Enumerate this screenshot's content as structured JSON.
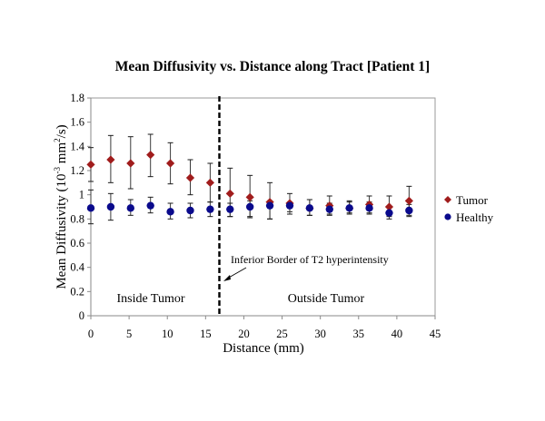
{
  "chart_data": {
    "type": "scatter",
    "title": "Mean Diffusivity vs. Distance along Tract [Patient 1]",
    "xlabel": "Distance (mm)",
    "ylabel_parts": [
      "Mean Diffusivity (10",
      "-3",
      " mm",
      "2",
      "/s)"
    ],
    "ylabel": "Mean Diffusivity (10^-3 mm^2/s)",
    "xlim": [
      0,
      45
    ],
    "ylim": [
      0,
      1.8
    ],
    "xticks": [
      0,
      5,
      10,
      15,
      20,
      25,
      30,
      35,
      40,
      45
    ],
    "yticks": [
      0,
      0.2,
      0.4,
      0.6,
      0.8,
      1,
      1.2,
      1.4,
      1.6,
      1.8
    ],
    "xtick_labels": [
      "0",
      "5",
      "10",
      "15",
      "20",
      "25",
      "30",
      "35",
      "40",
      "45"
    ],
    "ytick_labels": [
      "0",
      "0.2",
      "0.4",
      "0.6",
      "0.8",
      "1",
      "1.2",
      "1.4",
      "1.6",
      "1.8"
    ],
    "grid": false,
    "legend_position": "right",
    "x": [
      0,
      2.6,
      5.2,
      7.8,
      10.4,
      13.0,
      15.6,
      18.2,
      20.8,
      23.4,
      26.0,
      28.6,
      31.2,
      33.8,
      36.4,
      39.0,
      41.6
    ],
    "series": [
      {
        "name": "Tumor",
        "marker": "diamond",
        "color": "#a01c1c",
        "values": [
          1.25,
          1.29,
          1.26,
          1.33,
          1.26,
          1.14,
          1.1,
          1.01,
          0.98,
          0.94,
          0.93,
          0.89,
          0.91,
          0.89,
          0.92,
          0.9,
          0.95
        ],
        "error_upper": [
          1.39,
          1.49,
          1.48,
          1.5,
          1.43,
          1.29,
          1.26,
          1.22,
          1.16,
          1.1,
          1.01,
          0.96,
          0.99,
          0.95,
          0.99,
          0.99,
          1.07
        ],
        "error_lower": [
          1.11,
          1.1,
          1.05,
          1.15,
          1.09,
          1.0,
          0.94,
          0.82,
          0.81,
          0.8,
          0.86,
          0.83,
          0.84,
          0.84,
          0.85,
          0.82,
          0.83
        ]
      },
      {
        "name": "Healthy",
        "marker": "circle",
        "color": "#0a0a8c",
        "values": [
          0.89,
          0.9,
          0.89,
          0.91,
          0.86,
          0.87,
          0.88,
          0.88,
          0.9,
          0.91,
          0.91,
          0.89,
          0.88,
          0.89,
          0.89,
          0.85,
          0.87
        ],
        "error_upper": [
          1.04,
          1.01,
          0.96,
          0.98,
          0.93,
          0.93,
          0.94,
          0.93,
          0.95,
          0.95,
          0.94,
          0.96,
          0.93,
          0.94,
          0.94,
          0.9,
          0.92
        ],
        "error_lower": [
          0.76,
          0.79,
          0.83,
          0.85,
          0.8,
          0.81,
          0.82,
          0.82,
          0.82,
          0.8,
          0.84,
          0.83,
          0.83,
          0.85,
          0.84,
          0.8,
          0.82
        ]
      }
    ],
    "vline": {
      "x": 16.8,
      "style": "dashed",
      "color": "#000000"
    },
    "annotations": {
      "inside": "Inside Tumor",
      "outside": "Outside Tumor",
      "border": "Inferior Border of T2 hyperintensity"
    }
  }
}
